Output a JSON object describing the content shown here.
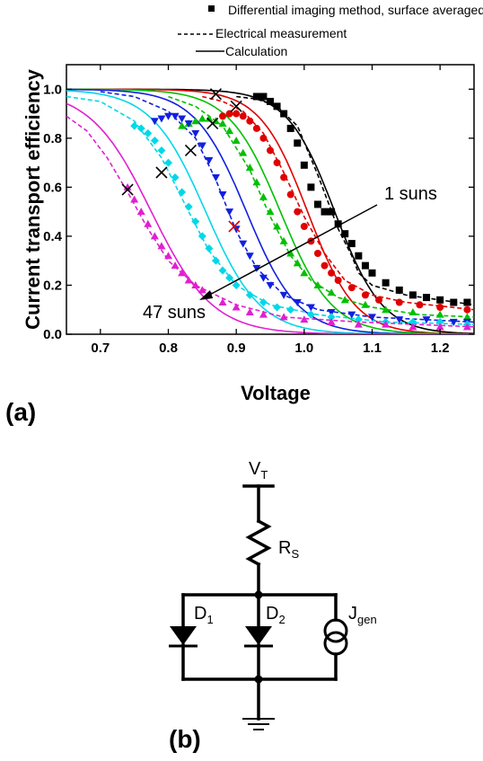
{
  "chart_data": {
    "type": "scatter",
    "xlabel": "Voltage",
    "ylabel": "Current transport efficiency",
    "xlim": [
      0.65,
      1.25
    ],
    "ylim": [
      0.0,
      1.1
    ],
    "xticks": [
      "0.7",
      "0.8",
      "0.9",
      "1.0",
      "1.1",
      "1.2"
    ],
    "yticks": [
      "0.0",
      "0.2",
      "0.4",
      "0.6",
      "0.8",
      "1.0"
    ],
    "legend": {
      "position": "top",
      "entries": [
        "Differential imaging method, surface averaged",
        "Electrical measurement",
        "Calculation"
      ]
    },
    "annotations": {
      "high": "1 suns",
      "low": "47 suns"
    },
    "series": [
      {
        "color": "#000000",
        "marker": "square",
        "v0": 1.045,
        "k": 0.035,
        "points": [
          [
            0.93,
            0.97
          ],
          [
            0.94,
            0.97
          ],
          [
            0.95,
            0.95
          ],
          [
            0.96,
            0.93
          ],
          [
            0.97,
            0.9
          ],
          [
            0.98,
            0.84
          ],
          [
            0.99,
            0.78
          ],
          [
            1.0,
            0.69
          ],
          [
            1.01,
            0.6
          ],
          [
            1.02,
            0.53
          ],
          [
            1.03,
            0.5
          ],
          [
            1.04,
            0.5
          ],
          [
            1.05,
            0.45
          ],
          [
            1.06,
            0.41
          ],
          [
            1.07,
            0.37
          ],
          [
            1.08,
            0.32
          ],
          [
            1.09,
            0.28
          ],
          [
            1.1,
            0.25
          ],
          [
            1.12,
            0.21
          ],
          [
            1.14,
            0.18
          ],
          [
            1.16,
            0.16
          ],
          [
            1.18,
            0.15
          ],
          [
            1.2,
            0.14
          ],
          [
            1.22,
            0.13
          ],
          [
            1.24,
            0.13
          ]
        ],
        "meas": [
          [
            0.9,
            0.97
          ],
          [
            0.93,
            0.96
          ],
          [
            0.96,
            0.93
          ],
          [
            0.99,
            0.85
          ],
          [
            1.02,
            0.65
          ],
          [
            1.05,
            0.43
          ],
          [
            1.07,
            0.32
          ],
          [
            1.08,
            0.25
          ],
          [
            1.1,
            0.2
          ],
          [
            1.15,
            0.16
          ],
          [
            1.25,
            0.12
          ]
        ],
        "cross": [
          0.87,
          0.98
        ]
      },
      {
        "color": "#e00000",
        "marker": "circle",
        "v0": 1.005,
        "k": 0.035,
        "points": [
          [
            0.88,
            0.89
          ],
          [
            0.89,
            0.9
          ],
          [
            0.9,
            0.9
          ],
          [
            0.91,
            0.89
          ],
          [
            0.92,
            0.87
          ],
          [
            0.93,
            0.84
          ],
          [
            0.94,
            0.8
          ],
          [
            0.95,
            0.75
          ],
          [
            0.96,
            0.7
          ],
          [
            0.97,
            0.64
          ],
          [
            0.98,
            0.57
          ],
          [
            0.99,
            0.5
          ],
          [
            1.0,
            0.44
          ],
          [
            1.01,
            0.38
          ],
          [
            1.02,
            0.33
          ],
          [
            1.03,
            0.28
          ],
          [
            1.04,
            0.25
          ],
          [
            1.05,
            0.22
          ],
          [
            1.07,
            0.19
          ],
          [
            1.09,
            0.16
          ],
          [
            1.11,
            0.14
          ],
          [
            1.14,
            0.13
          ],
          [
            1.17,
            0.12
          ],
          [
            1.2,
            0.11
          ],
          [
            1.24,
            0.1
          ]
        ],
        "meas": [
          [
            0.85,
            0.97
          ],
          [
            0.88,
            0.95
          ],
          [
            0.91,
            0.91
          ],
          [
            0.94,
            0.82
          ],
          [
            0.97,
            0.66
          ],
          [
            1.0,
            0.48
          ],
          [
            1.03,
            0.33
          ],
          [
            1.06,
            0.22
          ],
          [
            1.1,
            0.16
          ],
          [
            1.15,
            0.13
          ],
          [
            1.25,
            0.1
          ]
        ],
        "cross": [
          0.9,
          0.93
        ]
      },
      {
        "color": "#00c000",
        "marker": "triangle-up",
        "v0": 0.965,
        "k": 0.038,
        "points": [
          [
            0.82,
            0.85
          ],
          [
            0.83,
            0.86
          ],
          [
            0.84,
            0.87
          ],
          [
            0.85,
            0.88
          ],
          [
            0.86,
            0.88
          ],
          [
            0.87,
            0.87
          ],
          [
            0.88,
            0.86
          ],
          [
            0.89,
            0.83
          ],
          [
            0.9,
            0.79
          ],
          [
            0.91,
            0.74
          ],
          [
            0.92,
            0.68
          ],
          [
            0.93,
            0.62
          ],
          [
            0.94,
            0.56
          ],
          [
            0.95,
            0.5
          ],
          [
            0.96,
            0.44
          ],
          [
            0.97,
            0.38
          ],
          [
            0.98,
            0.33
          ],
          [
            0.99,
            0.29
          ],
          [
            1.0,
            0.25
          ],
          [
            1.02,
            0.2
          ],
          [
            1.04,
            0.17
          ],
          [
            1.06,
            0.14
          ],
          [
            1.09,
            0.12
          ],
          [
            1.12,
            0.1
          ],
          [
            1.16,
            0.09
          ],
          [
            1.2,
            0.08
          ],
          [
            1.24,
            0.07
          ]
        ],
        "meas": [
          [
            0.8,
            0.97
          ],
          [
            0.84,
            0.93
          ],
          [
            0.88,
            0.85
          ],
          [
            0.92,
            0.67
          ],
          [
            0.95,
            0.48
          ],
          [
            0.98,
            0.32
          ],
          [
            1.01,
            0.22
          ],
          [
            1.05,
            0.15
          ],
          [
            1.1,
            0.11
          ],
          [
            1.17,
            0.08
          ],
          [
            1.25,
            0.07
          ]
        ],
        "cross": [
          0.865,
          0.86
        ]
      },
      {
        "color": "#1020e0",
        "marker": "triangle-down",
        "v0": 0.915,
        "k": 0.038,
        "points": [
          [
            0.78,
            0.87
          ],
          [
            0.79,
            0.88
          ],
          [
            0.8,
            0.89
          ],
          [
            0.81,
            0.89
          ],
          [
            0.82,
            0.88
          ],
          [
            0.83,
            0.86
          ],
          [
            0.84,
            0.82
          ],
          [
            0.85,
            0.77
          ],
          [
            0.86,
            0.71
          ],
          [
            0.87,
            0.64
          ],
          [
            0.88,
            0.57
          ],
          [
            0.89,
            0.5
          ],
          [
            0.9,
            0.43
          ],
          [
            0.91,
            0.37
          ],
          [
            0.92,
            0.32
          ],
          [
            0.93,
            0.27
          ],
          [
            0.94,
            0.23
          ],
          [
            0.95,
            0.2
          ],
          [
            0.97,
            0.16
          ],
          [
            0.99,
            0.13
          ],
          [
            1.01,
            0.11
          ],
          [
            1.04,
            0.09
          ],
          [
            1.07,
            0.08
          ],
          [
            1.1,
            0.07
          ],
          [
            1.14,
            0.06
          ],
          [
            1.18,
            0.06
          ],
          [
            1.22,
            0.05
          ],
          [
            1.24,
            0.05
          ]
        ],
        "meas": [
          [
            0.7,
            0.99
          ],
          [
            0.75,
            0.97
          ],
          [
            0.8,
            0.91
          ],
          [
            0.84,
            0.8
          ],
          [
            0.87,
            0.63
          ],
          [
            0.9,
            0.42
          ],
          [
            0.93,
            0.27
          ],
          [
            0.97,
            0.16
          ],
          [
            1.02,
            0.1
          ],
          [
            1.1,
            0.07
          ],
          [
            1.25,
            0.05
          ]
        ],
        "cross": [
          0.833,
          0.75
        ]
      },
      {
        "color": "#00d8e8",
        "marker": "diamond",
        "v0": 0.855,
        "k": 0.04,
        "points": [
          [
            0.75,
            0.85
          ],
          [
            0.76,
            0.84
          ],
          [
            0.77,
            0.82
          ],
          [
            0.78,
            0.79
          ],
          [
            0.79,
            0.75
          ],
          [
            0.8,
            0.7
          ],
          [
            0.81,
            0.64
          ],
          [
            0.82,
            0.58
          ],
          [
            0.83,
            0.52
          ],
          [
            0.84,
            0.46
          ],
          [
            0.85,
            0.4
          ],
          [
            0.86,
            0.35
          ],
          [
            0.87,
            0.3
          ],
          [
            0.88,
            0.26
          ],
          [
            0.89,
            0.23
          ],
          [
            0.9,
            0.2
          ],
          [
            0.92,
            0.16
          ],
          [
            0.94,
            0.13
          ],
          [
            0.96,
            0.11
          ],
          [
            0.98,
            0.1
          ],
          [
            1.01,
            0.08
          ],
          [
            1.04,
            0.07
          ],
          [
            1.08,
            0.06
          ],
          [
            1.12,
            0.05
          ],
          [
            1.16,
            0.05
          ],
          [
            1.2,
            0.05
          ],
          [
            1.24,
            0.04
          ]
        ],
        "meas": [
          [
            0.65,
            0.97
          ],
          [
            0.7,
            0.95
          ],
          [
            0.75,
            0.87
          ],
          [
            0.79,
            0.72
          ],
          [
            0.83,
            0.5
          ],
          [
            0.86,
            0.34
          ],
          [
            0.9,
            0.2
          ],
          [
            0.95,
            0.12
          ],
          [
            1.02,
            0.08
          ],
          [
            1.12,
            0.05
          ],
          [
            1.25,
            0.04
          ]
        ],
        "cross": [
          0.79,
          0.66
        ]
      },
      {
        "color": "#e020d0",
        "marker": "triangle-up",
        "v0": 0.775,
        "k": 0.045,
        "points": [
          [
            0.74,
            0.6
          ],
          [
            0.75,
            0.55
          ],
          [
            0.76,
            0.5
          ],
          [
            0.77,
            0.45
          ],
          [
            0.78,
            0.4
          ],
          [
            0.79,
            0.36
          ],
          [
            0.8,
            0.32
          ],
          [
            0.81,
            0.28
          ],
          [
            0.82,
            0.25
          ],
          [
            0.83,
            0.22
          ],
          [
            0.84,
            0.2
          ],
          [
            0.85,
            0.18
          ],
          [
            0.86,
            0.16
          ],
          [
            0.88,
            0.13
          ],
          [
            0.9,
            0.11
          ],
          [
            0.92,
            0.09
          ],
          [
            0.94,
            0.08
          ],
          [
            0.97,
            0.07
          ],
          [
            1.0,
            0.06
          ],
          [
            1.04,
            0.05
          ],
          [
            1.08,
            0.04
          ],
          [
            1.12,
            0.04
          ],
          [
            1.16,
            0.03
          ],
          [
            1.2,
            0.03
          ],
          [
            1.24,
            0.03
          ]
        ],
        "meas": [
          [
            0.65,
            0.89
          ],
          [
            0.68,
            0.83
          ],
          [
            0.71,
            0.72
          ],
          [
            0.74,
            0.58
          ],
          [
            0.77,
            0.43
          ],
          [
            0.8,
            0.3
          ],
          [
            0.84,
            0.2
          ],
          [
            0.9,
            0.12
          ],
          [
            0.97,
            0.07
          ],
          [
            1.08,
            0.05
          ],
          [
            1.25,
            0.03
          ]
        ],
        "cross": [
          0.74,
          0.59
        ]
      }
    ],
    "extra_cross": {
      "point": [
        0.897,
        0.44
      ],
      "color": "#e00000"
    }
  },
  "diagram": {
    "panel_a": "(a)",
    "panel_b": "(b)",
    "vt_main": "V",
    "vt_sub": "T",
    "rs_main": "R",
    "rs_sub": "S",
    "d1_main": "D",
    "d1_sub": "1",
    "d2_main": "D",
    "d2_sub": "2",
    "jgen_main": "J",
    "jgen_sub": "gen"
  }
}
